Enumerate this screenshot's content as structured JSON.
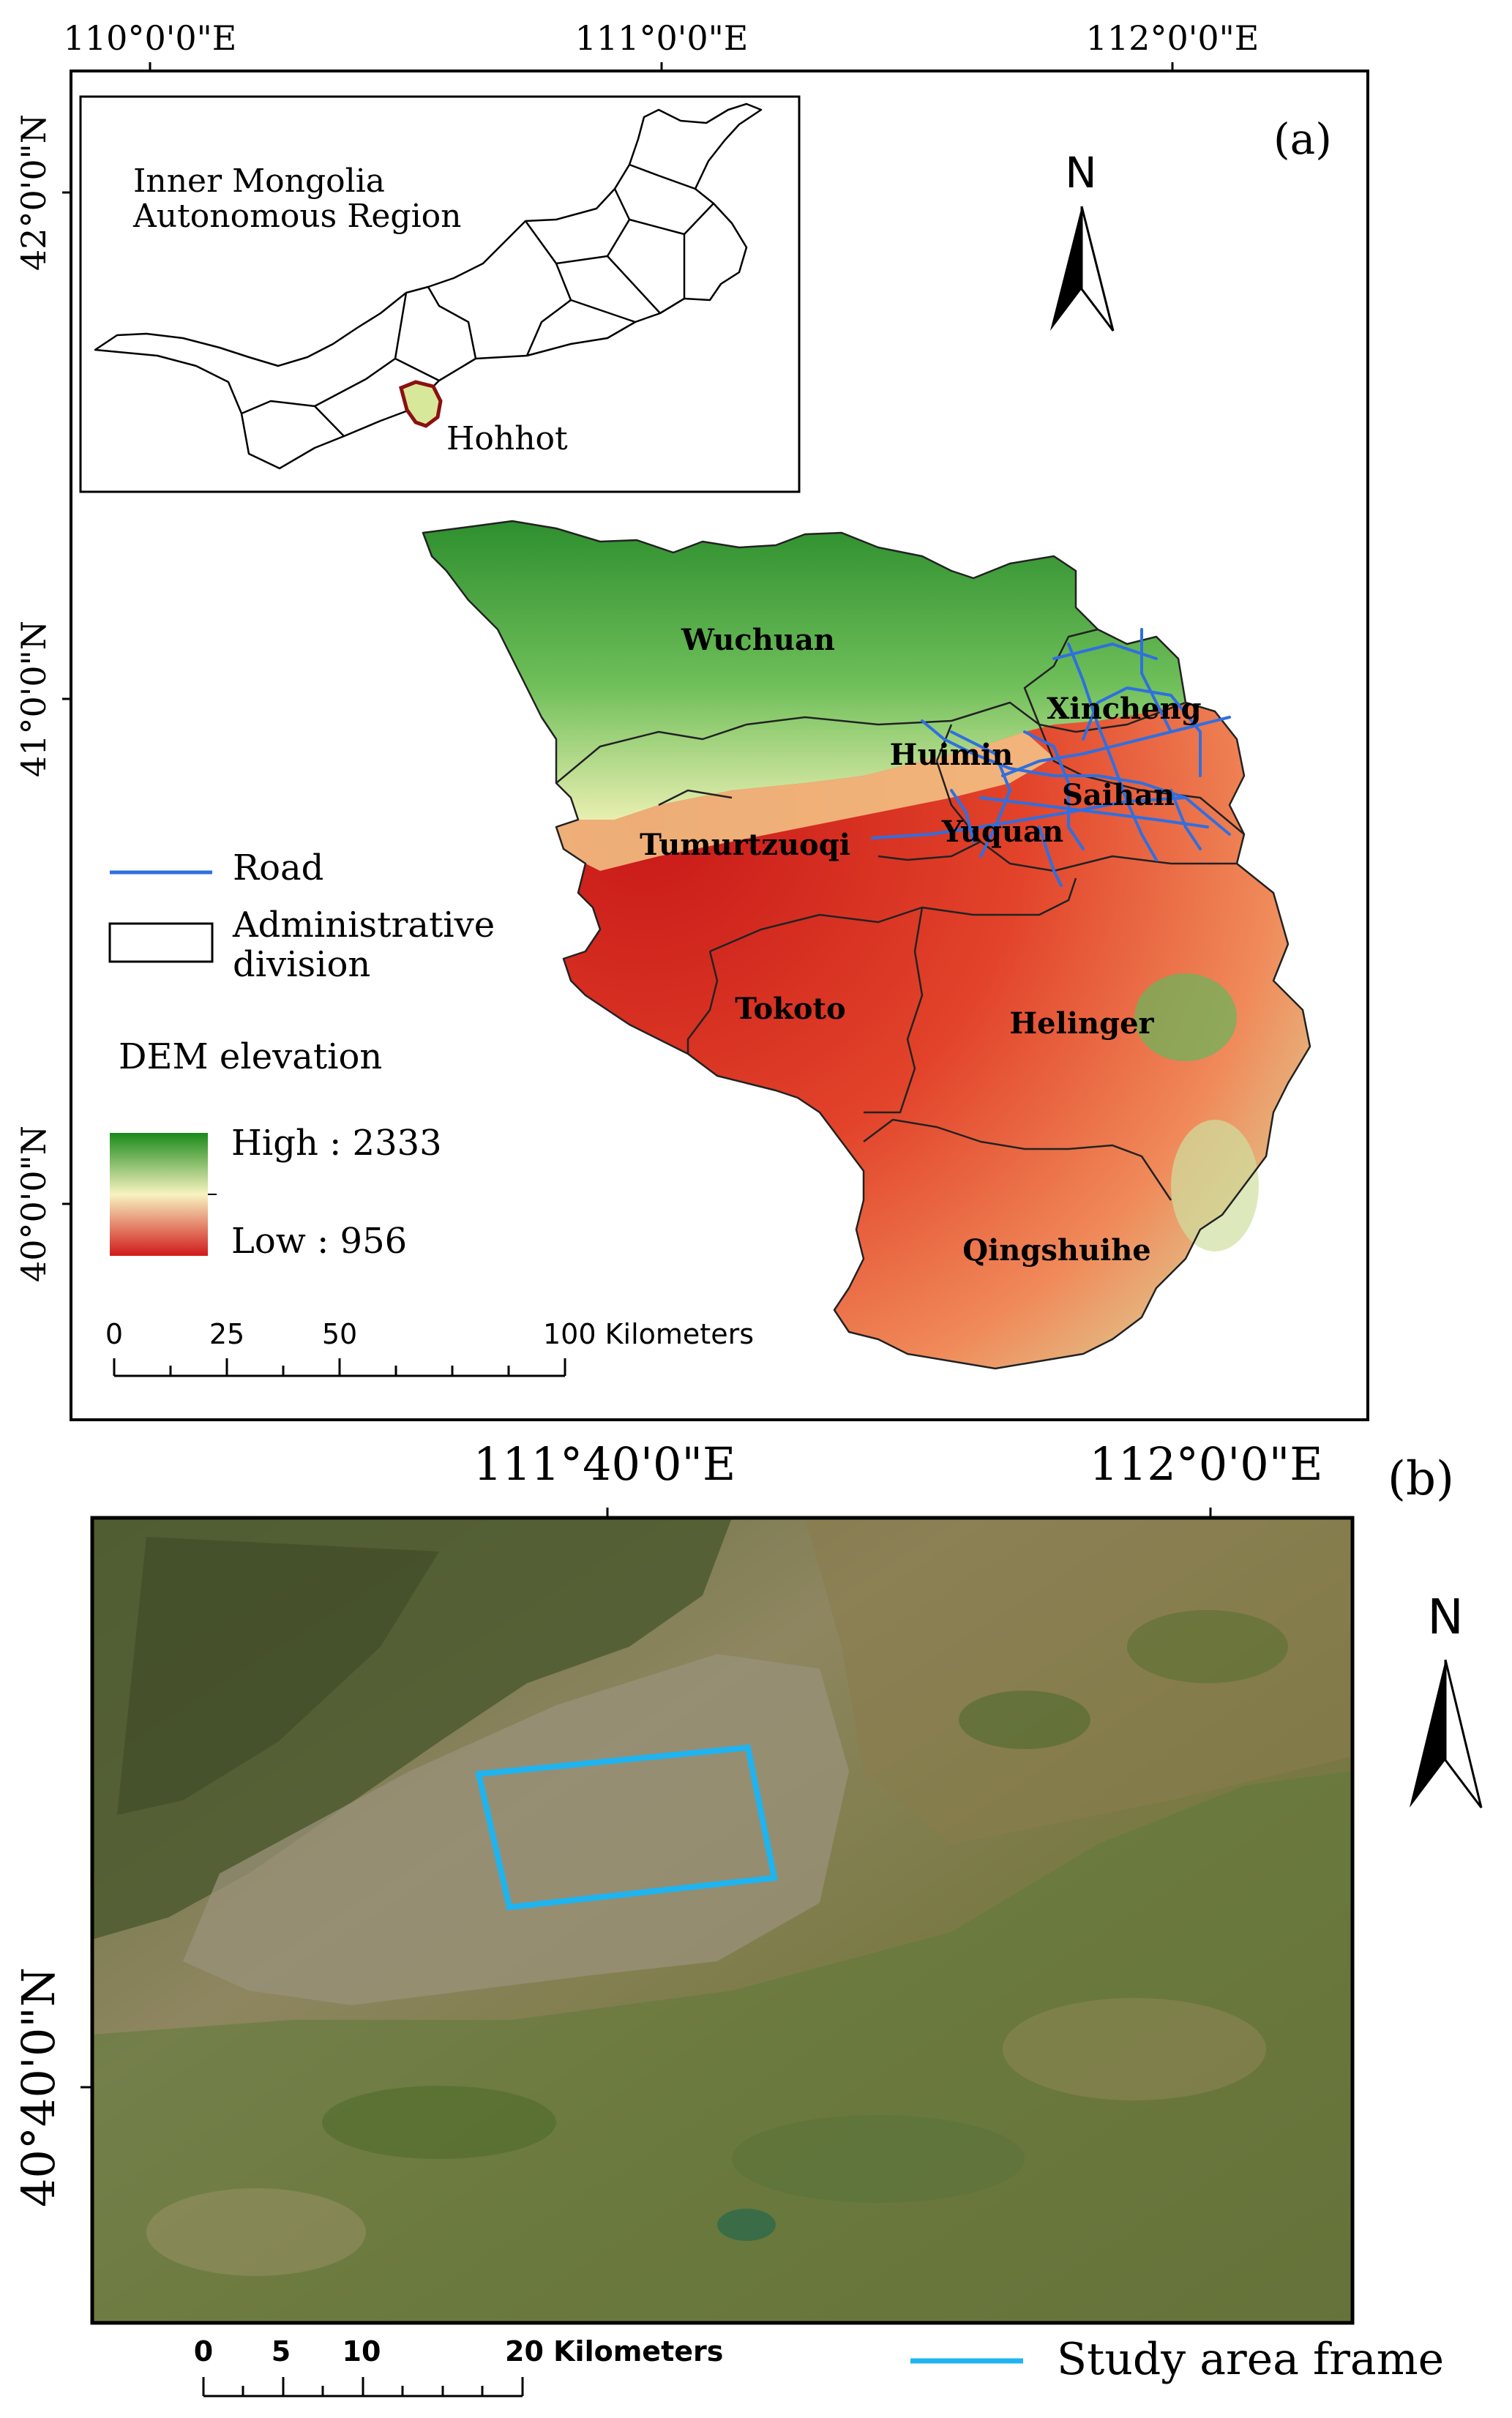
{
  "panel_a": {
    "label": "(a)",
    "top_coords": [
      "110°0'0\"E",
      "111°0'0\"E",
      "112°0'0\"E"
    ],
    "left_coords": [
      "42°0'0\"N",
      "41°0'0\"N",
      "40°0'0\"N"
    ],
    "north": "N",
    "inset": {
      "title_line1": "Inner Mongolia",
      "title_line2": "Autonomous Region",
      "city": "Hohhot"
    },
    "districts": [
      "Wuchuan",
      "Xincheng",
      "Huimin",
      "Saihan",
      "Yuquan",
      "Tumurtzuoqi",
      "Tokoto",
      "Helinger",
      "Qingshuihe"
    ],
    "legend": {
      "road": "Road",
      "admin_line1": "Administrative",
      "admin_line2": "division",
      "dem_title": "DEM elevation",
      "high": "High : 2333",
      "low": "Low  : 956"
    },
    "scale": {
      "ticks": [
        "0",
        "25",
        "50"
      ],
      "end": "100 Kilometers"
    },
    "colors": {
      "road": "#2f6fe0",
      "high": "#1a8a1a",
      "mid": "#f8f3c0",
      "low": "#d01a1a"
    }
  },
  "panel_b": {
    "label": "(b)",
    "top_coords": [
      "111°40'0\"E",
      "112°0'0\"E"
    ],
    "left_coords": [
      "40°40'0\"N"
    ],
    "north": "N",
    "scale": {
      "ticks": [
        "0",
        "5",
        "10"
      ],
      "end": "20 Kilometers"
    },
    "legend": {
      "study_area": "Study area frame"
    },
    "colors": {
      "study_area": "#1fb4f0"
    }
  }
}
